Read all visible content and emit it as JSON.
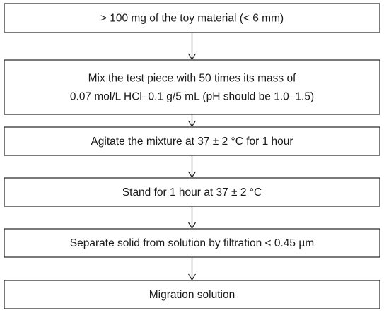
{
  "nodes": [
    {
      "lines": [
        "> 100 mg of the toy material (< 6 mm)"
      ]
    },
    {
      "lines": [
        "Mix the test piece with 50 times its mass of",
        "0.07 mol/L HCl–0.1 g/5 mL (pH should be 1.0–1.5)"
      ]
    },
    {
      "lines": [
        "Agitate the mixture at 37 ± 2 °C for 1 hour"
      ]
    },
    {
      "lines": [
        "Stand for 1 hour at 37 ± 2 °C"
      ]
    },
    {
      "lines": [
        "Separate solid from solution by filtration < 0.45 µm"
      ]
    },
    {
      "lines": [
        "Migration solution"
      ]
    }
  ]
}
